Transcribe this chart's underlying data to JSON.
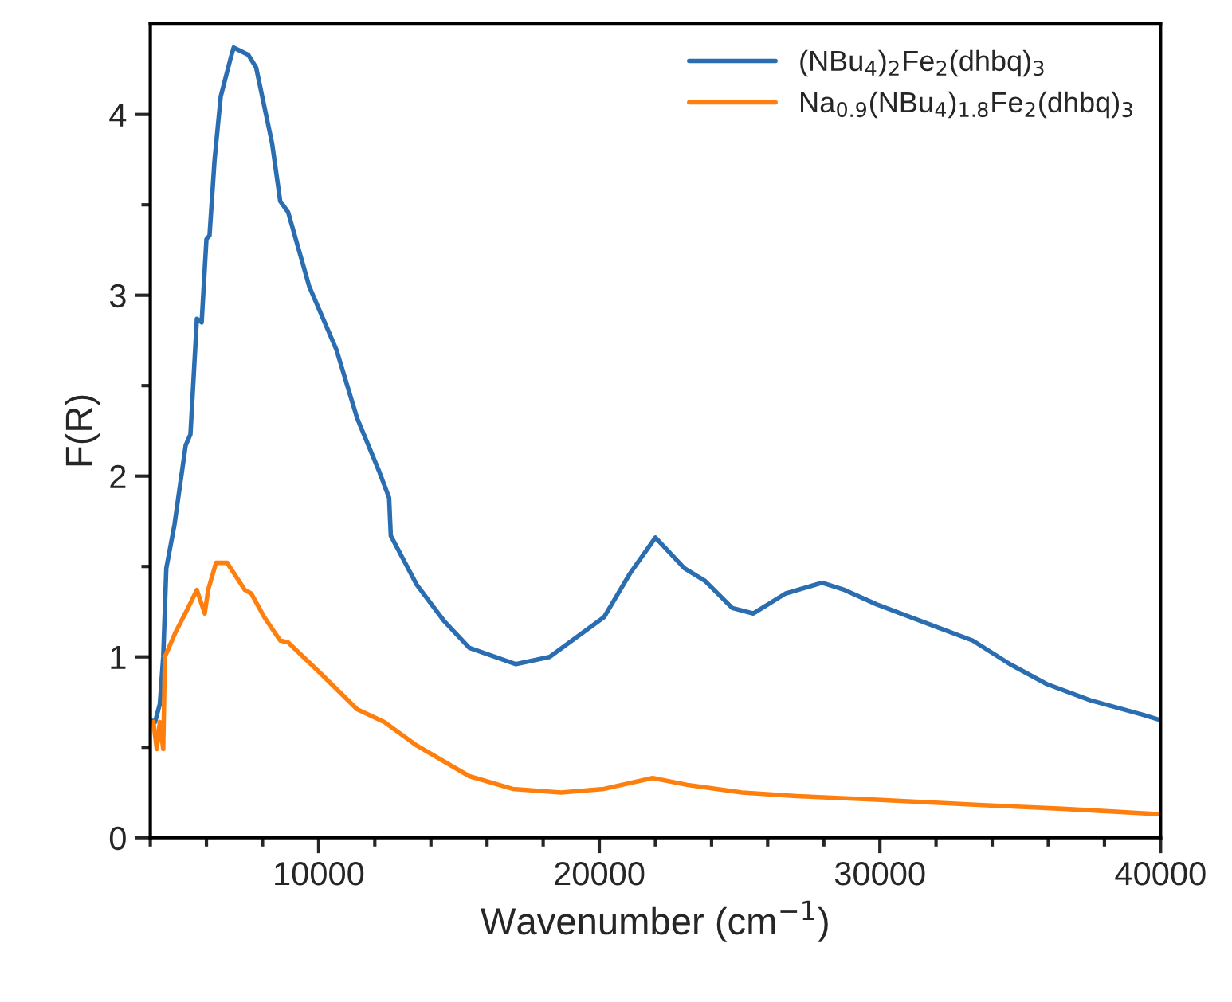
{
  "chart_data": {
    "type": "line",
    "xlabel": "Wavenumber (cm$^{−1}$)",
    "ylabel": "F(R)",
    "xlim": [
      4000,
      40000
    ],
    "ylim": [
      0,
      4.5
    ],
    "xticks": [
      {
        "value": 4000,
        "label": null
      },
      {
        "value": 6000,
        "label": null
      },
      {
        "value": 8000,
        "label": null
      },
      10000,
      {
        "value": 12000,
        "label": null
      },
      {
        "value": 14000,
        "label": null
      },
      {
        "value": 16000,
        "label": null
      },
      {
        "value": 18000,
        "label": null
      },
      20000,
      {
        "value": 22000,
        "label": null
      },
      {
        "value": 24000,
        "label": null
      },
      {
        "value": 26000,
        "label": null
      },
      {
        "value": 28000,
        "label": null
      },
      30000,
      {
        "value": 32000,
        "label": null
      },
      {
        "value": 34000,
        "label": null
      },
      {
        "value": 36000,
        "label": null
      },
      {
        "value": 38000,
        "label": null
      },
      40000
    ],
    "yticks": [
      0,
      {
        "value": 0.5,
        "label": null
      },
      1,
      {
        "value": 1.5,
        "label": null
      },
      2,
      {
        "value": 2.5,
        "label": null
      },
      3,
      {
        "value": 3.5,
        "label": null
      },
      4
    ],
    "legend": "top right",
    "grid": false,
    "line_style": "solid",
    "marker": "none",
    "series": [
      {
        "name": "(NBu$_{4}$)$_{2}$Fe$_{2}$(dhbq)$_{3}$",
        "color": "#2a6db0",
        "x": [
          4000,
          4170,
          4340,
          4460,
          4570,
          4860,
          5260,
          5430,
          5660,
          5830,
          6000,
          6110,
          6290,
          6510,
          6860,
          6970,
          7490,
          7770,
          8340,
          8630,
          8910,
          9660,
          10630,
          11370,
          12170,
          12510,
          12570,
          13490,
          14460,
          15370,
          17030,
          18230,
          20170,
          21090,
          22000,
          23030,
          23770,
          24740,
          25490,
          26630,
          27940,
          28740,
          29890,
          31770,
          33310,
          34630,
          35940,
          37490,
          39370,
          40000
        ],
        "values": [
          0.65,
          0.64,
          0.74,
          1.0,
          1.49,
          1.73,
          2.17,
          2.23,
          2.87,
          2.85,
          3.31,
          3.33,
          3.75,
          4.1,
          4.31,
          4.37,
          4.33,
          4.26,
          3.84,
          3.52,
          3.46,
          3.05,
          2.7,
          2.32,
          2.02,
          1.88,
          1.67,
          1.4,
          1.2,
          1.05,
          0.96,
          1.0,
          1.22,
          1.46,
          1.66,
          1.49,
          1.42,
          1.27,
          1.24,
          1.35,
          1.41,
          1.37,
          1.29,
          1.18,
          1.09,
          0.96,
          0.85,
          0.76,
          0.68,
          0.65
        ]
      },
      {
        "name": "Na$_{0.9}$(NBu$_{4}$)$_{1.8}$Fe$_{2}$(dhbq)$_{3}$",
        "color": "#ff7f0e",
        "x": [
          4110,
          4230,
          4340,
          4460,
          4520,
          4910,
          5310,
          5660,
          5940,
          6060,
          6340,
          6740,
          7370,
          7600,
          8060,
          8630,
          8910,
          10060,
          11370,
          12340,
          13490,
          15370,
          16910,
          18630,
          20170,
          21900,
          23200,
          25090,
          27030,
          29890,
          33660,
          36510,
          40000
        ],
        "values": [
          0.64,
          0.49,
          0.64,
          0.49,
          1.0,
          1.14,
          1.26,
          1.37,
          1.24,
          1.37,
          1.52,
          1.52,
          1.37,
          1.35,
          1.22,
          1.09,
          1.08,
          0.91,
          0.71,
          0.64,
          0.51,
          0.34,
          0.27,
          0.25,
          0.27,
          0.33,
          0.29,
          0.25,
          0.23,
          0.21,
          0.18,
          0.16,
          0.13
        ]
      }
    ]
  }
}
